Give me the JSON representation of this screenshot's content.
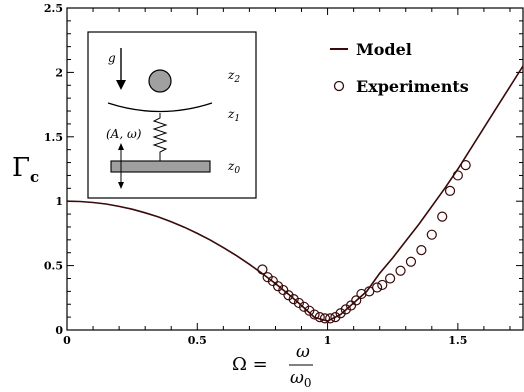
{
  "chart_data": {
    "type": "line",
    "ylabel": "Γ",
    "ylabel_sub": "c",
    "xlabel": "Ω =",
    "xlabel_num": "ω",
    "xlabel_den": "ω",
    "xlabel_den_sub": "0",
    "xlim": [
      0,
      1.75
    ],
    "ylim": [
      0,
      2.5
    ],
    "x_ticks": [
      0,
      0.5,
      1,
      1.5
    ],
    "x_tick_labels": [
      "0",
      "0.5",
      "1",
      "1.5"
    ],
    "y_ticks": [
      0,
      0.5,
      1,
      1.5,
      2,
      2.5
    ],
    "y_tick_labels": [
      "0",
      "0.5",
      "1",
      "1.5",
      "2",
      "2.5"
    ],
    "legend_position": "top-right",
    "series": [
      {
        "name": "Model",
        "style": "line",
        "color": "#3a0a0a",
        "x": [
          0,
          0.05,
          0.1,
          0.15,
          0.2,
          0.25,
          0.3,
          0.35,
          0.4,
          0.45,
          0.5,
          0.55,
          0.6,
          0.65,
          0.7,
          0.75,
          0.8,
          0.85,
          0.9,
          0.95,
          1.0,
          1.05,
          1.1,
          1.15,
          1.2,
          1.25,
          1.3,
          1.35,
          1.4,
          1.45,
          1.5,
          1.55,
          1.6,
          1.65,
          1.7,
          1.75
        ],
        "y": [
          1.0,
          0.998,
          0.99,
          0.978,
          0.96,
          0.938,
          0.91,
          0.878,
          0.84,
          0.798,
          0.75,
          0.698,
          0.64,
          0.578,
          0.51,
          0.438,
          0.36,
          0.278,
          0.19,
          0.098,
          0.07,
          0.12,
          0.21,
          0.3,
          0.44,
          0.56,
          0.69,
          0.82,
          0.96,
          1.1,
          1.25,
          1.41,
          1.57,
          1.73,
          1.89,
          2.05
        ]
      },
      {
        "name": "Experiments",
        "style": "marker",
        "color": "#3a0a0a",
        "x": [
          0.75,
          0.77,
          0.79,
          0.81,
          0.83,
          0.85,
          0.87,
          0.89,
          0.91,
          0.93,
          0.95,
          0.97,
          0.99,
          1.01,
          1.03,
          1.05,
          1.07,
          1.09,
          1.11,
          1.13,
          1.16,
          1.19,
          1.21,
          1.24,
          1.28,
          1.32,
          1.36,
          1.4,
          1.44,
          1.47,
          1.5,
          1.53
        ],
        "y": [
          0.47,
          0.41,
          0.38,
          0.34,
          0.31,
          0.27,
          0.24,
          0.21,
          0.18,
          0.15,
          0.12,
          0.1,
          0.09,
          0.09,
          0.1,
          0.13,
          0.16,
          0.19,
          0.23,
          0.28,
          0.3,
          0.33,
          0.35,
          0.4,
          0.46,
          0.53,
          0.62,
          0.74,
          0.88,
          1.08,
          1.2,
          1.28
        ]
      }
    ],
    "inset": {
      "labels": [
        "g",
        "z",
        "z",
        "(A, ω)",
        "z"
      ],
      "label_subs": [
        "",
        "2",
        "1",
        "",
        "0"
      ]
    }
  }
}
